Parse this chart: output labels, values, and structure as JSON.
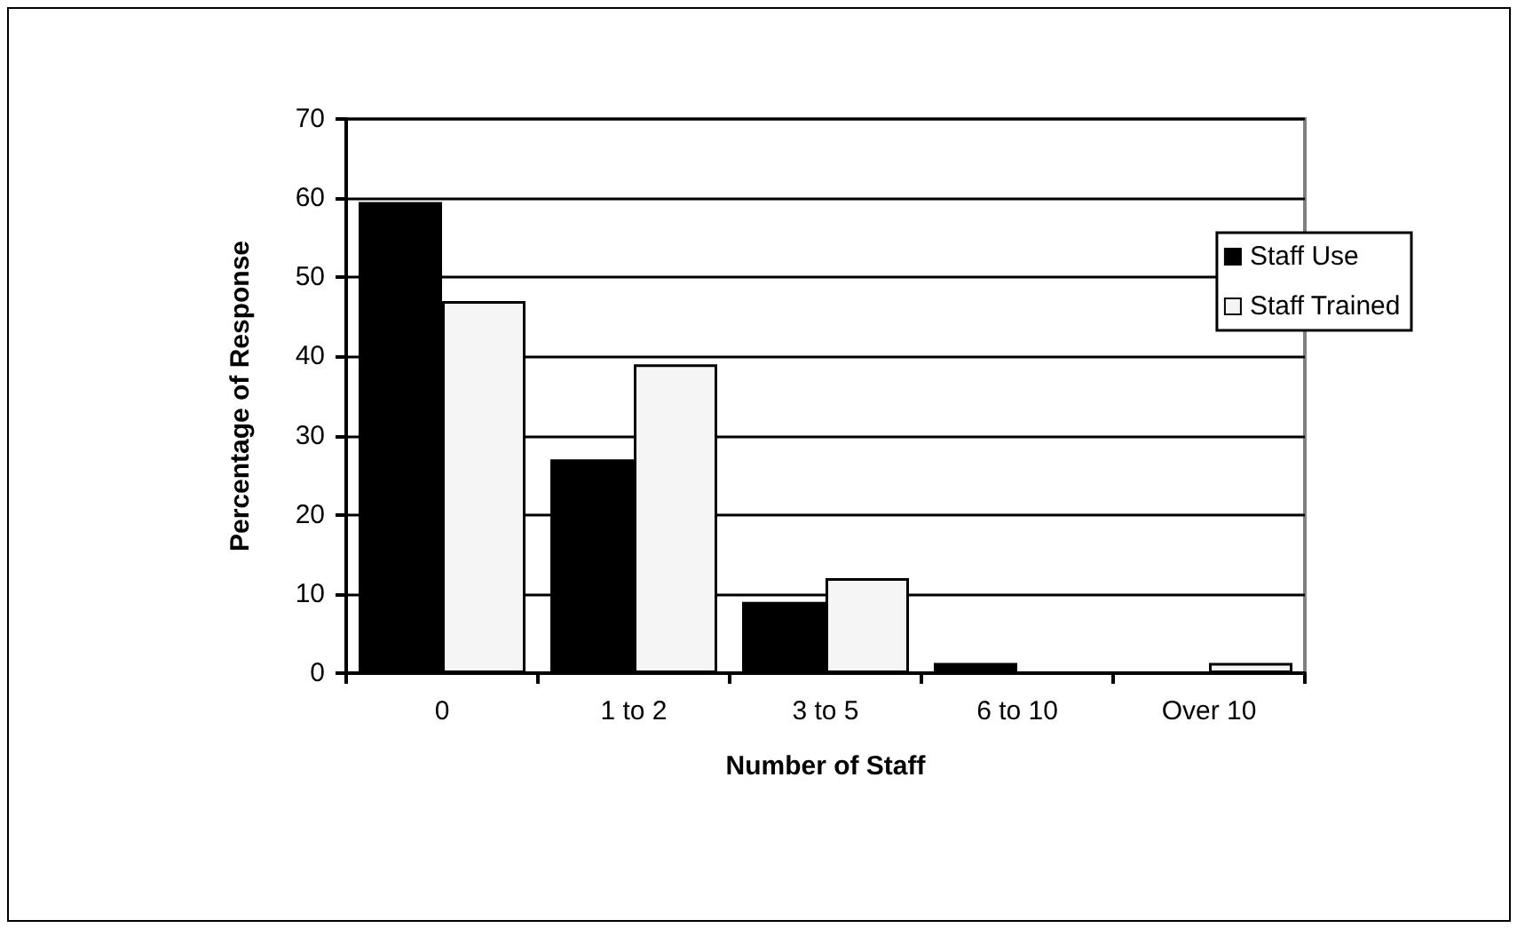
{
  "chart_data": {
    "type": "bar",
    "xlabel": "Number of Staff",
    "ylabel": "Percentage of Response",
    "categories": [
      "0",
      "1 to 2",
      "3 to 5",
      "6 to 10",
      "Over 10"
    ],
    "series": [
      {
        "name": "Staff Use",
        "color": "#000000",
        "values": [
          59.5,
          27,
          9,
          1.3,
          0
        ]
      },
      {
        "name": "Staff Trained",
        "color": "#f5f5f5",
        "values": [
          47,
          39,
          12,
          0,
          1.3
        ]
      }
    ],
    "ylim": [
      0,
      70
    ],
    "yticks": [
      0,
      10,
      20,
      30,
      40,
      50,
      60,
      70
    ],
    "grid": "y",
    "legend": "top right"
  }
}
